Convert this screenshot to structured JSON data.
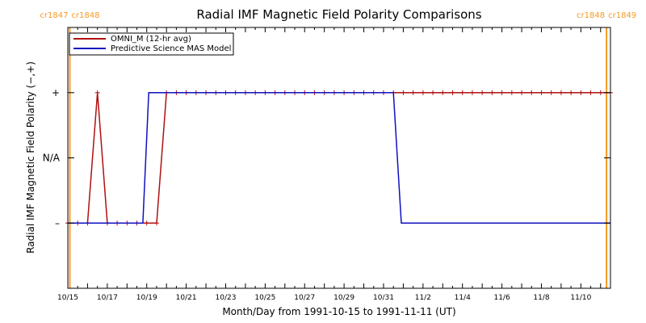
{
  "colors": {
    "omni": "#b01010",
    "model": "#1010c0",
    "carrington": "#f59a23",
    "axis": "#000000"
  },
  "chart_data": {
    "type": "line",
    "title": "Radial IMF Magnetic Field Polarity Comparisons",
    "xlabel": "Month/Day from 1991-10-15 to 1991-11-11 (UT)",
    "ylabel": "Radial IMF Magnetic Field Polarity (−,+)",
    "x_unit": "days since 1991-10-15 00:00 UT",
    "xlim": [
      0,
      27.5
    ],
    "ylim": [
      -2,
      2
    ],
    "x_ticks": [
      {
        "x": 0,
        "label": "10/15"
      },
      {
        "x": 2,
        "label": "10/17"
      },
      {
        "x": 4,
        "label": "10/19"
      },
      {
        "x": 6,
        "label": "10/21"
      },
      {
        "x": 8,
        "label": "10/23"
      },
      {
        "x": 10,
        "label": "10/25"
      },
      {
        "x": 12,
        "label": "10/27"
      },
      {
        "x": 14,
        "label": "10/29"
      },
      {
        "x": 16,
        "label": "10/31"
      },
      {
        "x": 18,
        "label": "11/2"
      },
      {
        "x": 20,
        "label": "11/4"
      },
      {
        "x": 22,
        "label": "11/6"
      },
      {
        "x": 24,
        "label": "11/8"
      },
      {
        "x": 26,
        "label": "11/10"
      }
    ],
    "y_ticks": [
      {
        "y": 1,
        "label": "+"
      },
      {
        "y": 0,
        "label": "N/A"
      },
      {
        "y": -1,
        "label": "–"
      }
    ],
    "carrington_markers": [
      {
        "x": 0.1,
        "label_left": "cr1847",
        "label_right": "cr1848"
      },
      {
        "x": 27.3,
        "label_left": "cr1848",
        "label_right": "cr1849"
      }
    ],
    "legend": {
      "placement": "top-left"
    },
    "series": [
      {
        "name": "OMNI_M (12-hr avg)",
        "color": "#b01010",
        "markers": true,
        "x": [
          0.0,
          0.5,
          1.0,
          1.5,
          2.0,
          2.5,
          3.0,
          3.5,
          4.0,
          4.5,
          5.0,
          5.5,
          6.0,
          6.5,
          7.0,
          7.5,
          8.0,
          8.5,
          9.0,
          9.5,
          10.0,
          10.5,
          11.0,
          11.5,
          12.0,
          12.5,
          13.0,
          13.5,
          14.0,
          14.5,
          15.0,
          15.5,
          16.0,
          16.5,
          17.0,
          17.5,
          18.0,
          18.5,
          19.0,
          19.5,
          20.0,
          20.5,
          21.0,
          21.5,
          22.0,
          22.5,
          23.0,
          23.5,
          24.0,
          24.5,
          25.0,
          25.5,
          26.0,
          26.5,
          27.0,
          27.5
        ],
        "y": [
          -1,
          -1,
          -1,
          1,
          -1,
          -1,
          -1,
          -1,
          -1,
          -1,
          1,
          1,
          1,
          1,
          1,
          1,
          1,
          1,
          1,
          1,
          1,
          1,
          1,
          1,
          1,
          1,
          1,
          1,
          1,
          1,
          1,
          1,
          1,
          1,
          1,
          1,
          1,
          1,
          1,
          1,
          1,
          1,
          1,
          1,
          1,
          1,
          1,
          1,
          1,
          1,
          1,
          1,
          1,
          1,
          1,
          1
        ]
      },
      {
        "name": "Predictive Science MAS Model",
        "color": "#1010c0",
        "markers": false,
        "x": [
          0.0,
          3.8,
          4.1,
          16.5,
          16.9,
          27.5
        ],
        "y": [
          -1,
          -1,
          1,
          1,
          -1,
          -1
        ]
      }
    ]
  }
}
